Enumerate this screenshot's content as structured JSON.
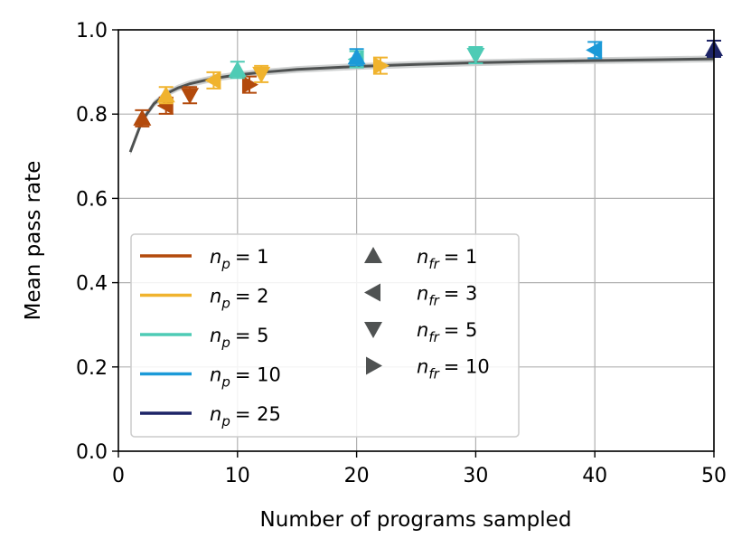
{
  "chart_data": {
    "type": "scatter",
    "xlabel": "Number of programs sampled",
    "ylabel": "Mean pass rate",
    "xlim": [
      0,
      50
    ],
    "ylim": [
      0.0,
      1.0
    ],
    "xticks": [
      "0",
      "10",
      "20",
      "30",
      "40",
      "50"
    ],
    "yticks": [
      "0.0",
      "0.2",
      "0.4",
      "0.6",
      "0.8",
      "1.0"
    ],
    "grid": true,
    "legend_position": "lower-left",
    "colors": {
      "np1": "#b34a0c",
      "np2": "#f0b32e",
      "np5": "#4ecbb5",
      "np10": "#1b9ad8",
      "np25": "#1d2467",
      "fit": "#4f5252",
      "fit_band": "#c4c7c7",
      "marker_legend": "#4f5252"
    },
    "fit_curve": {
      "x": [
        1,
        2,
        3,
        4,
        5,
        6,
        8,
        10,
        12,
        15,
        20,
        25,
        30,
        35,
        40,
        45,
        50
      ],
      "y": [
        0.71,
        0.785,
        0.825,
        0.848,
        0.862,
        0.872,
        0.885,
        0.893,
        0.899,
        0.906,
        0.913,
        0.918,
        0.922,
        0.925,
        0.927,
        0.929,
        0.931
      ]
    },
    "series": [
      {
        "name": "n_p = 1, n_fr = 1",
        "np": 1,
        "nfr": 1,
        "marker": "up",
        "color": "#b34a0c",
        "x": 2,
        "y": 0.79
      },
      {
        "name": "n_p = 1, n_fr = 3",
        "np": 1,
        "nfr": 3,
        "marker": "left",
        "color": "#b34a0c",
        "x": 4,
        "y": 0.82
      },
      {
        "name": "n_p = 1, n_fr = 5",
        "np": 1,
        "nfr": 5,
        "marker": "down",
        "color": "#b34a0c",
        "x": 6,
        "y": 0.845
      },
      {
        "name": "n_p = 1, n_fr = 10",
        "np": 1,
        "nfr": 10,
        "marker": "right",
        "color": "#b34a0c",
        "x": 11,
        "y": 0.87
      },
      {
        "name": "n_p = 2, n_fr = 1",
        "np": 2,
        "nfr": 1,
        "marker": "up",
        "color": "#f0b32e",
        "x": 4,
        "y": 0.845
      },
      {
        "name": "n_p = 2, n_fr = 3",
        "np": 2,
        "nfr": 3,
        "marker": "left",
        "color": "#f0b32e",
        "x": 8,
        "y": 0.88
      },
      {
        "name": "n_p = 2, n_fr = 5",
        "np": 2,
        "nfr": 5,
        "marker": "down",
        "color": "#f0b32e",
        "x": 12,
        "y": 0.895
      },
      {
        "name": "n_p = 2, n_fr = 10",
        "np": 2,
        "nfr": 10,
        "marker": "right",
        "color": "#f0b32e",
        "x": 22,
        "y": 0.915
      },
      {
        "name": "n_p = 5, n_fr = 1",
        "np": 5,
        "nfr": 1,
        "marker": "up",
        "color": "#4ecbb5",
        "x": 10,
        "y": 0.905
      },
      {
        "name": "n_p = 5, n_fr = 3",
        "np": 5,
        "nfr": 3,
        "marker": "left",
        "color": "#4ecbb5",
        "x": 20,
        "y": 0.93
      },
      {
        "name": "n_p = 5, n_fr = 5",
        "np": 5,
        "nfr": 5,
        "marker": "down",
        "color": "#4ecbb5",
        "x": 30,
        "y": 0.94
      },
      {
        "name": "n_p = 10, n_fr = 1",
        "np": 10,
        "nfr": 1,
        "marker": "up",
        "color": "#1b9ad8",
        "x": 20,
        "y": 0.935
      },
      {
        "name": "n_p = 10, n_fr = 3",
        "np": 10,
        "nfr": 3,
        "marker": "left",
        "color": "#1b9ad8",
        "x": 40,
        "y": 0.952
      },
      {
        "name": "n_p = 25, n_fr = 1",
        "np": 25,
        "nfr": 1,
        "marker": "up",
        "color": "#1d2467",
        "x": 50,
        "y": 0.955
      }
    ],
    "legend_np": [
      {
        "label": "n",
        "sub": "p",
        "value": "= 1",
        "color": "#b34a0c"
      },
      {
        "label": "n",
        "sub": "p",
        "value": "= 2",
        "color": "#f0b32e"
      },
      {
        "label": "n",
        "sub": "p",
        "value": "= 5",
        "color": "#4ecbb5"
      },
      {
        "label": "n",
        "sub": "p",
        "value": "= 10",
        "color": "#1b9ad8"
      },
      {
        "label": "n",
        "sub": "p",
        "value": "= 25",
        "color": "#1d2467"
      }
    ],
    "legend_nfr": [
      {
        "label": "n",
        "sub": "fr",
        "value": "= 1",
        "marker": "up"
      },
      {
        "label": "n",
        "sub": "fr",
        "value": "= 3",
        "marker": "left"
      },
      {
        "label": "n",
        "sub": "fr",
        "value": "= 5",
        "marker": "down"
      },
      {
        "label": "n",
        "sub": "fr",
        "value": "= 10",
        "marker": "right"
      }
    ]
  }
}
